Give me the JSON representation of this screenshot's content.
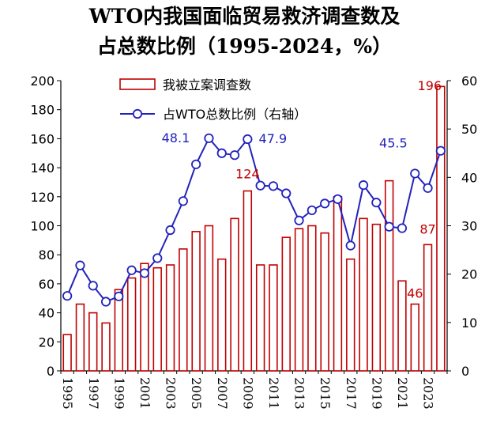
{
  "chart_data": {
    "type": "bar",
    "title": [
      "WTO内我国面临贸易救济调查数及",
      "占总数比例（1995-2024，%）"
    ],
    "x": [
      1995,
      1996,
      1997,
      1998,
      1999,
      2000,
      2001,
      2002,
      2003,
      2004,
      2005,
      2006,
      2007,
      2008,
      2009,
      2010,
      2011,
      2012,
      2013,
      2014,
      2015,
      2016,
      2017,
      2018,
      2019,
      2020,
      2021,
      2022,
      2023,
      2024
    ],
    "x_tick_labels": [
      "1995",
      "1997",
      "1999",
      "2001",
      "2003",
      "2005",
      "2007",
      "2009",
      "2011",
      "2013",
      "2015",
      "2017",
      "2019",
      "2021",
      "2023"
    ],
    "y_left": {
      "range": [
        0,
        200
      ],
      "ticks": [
        "0",
        "20",
        "40",
        "60",
        "80",
        "100",
        "120",
        "140",
        "160",
        "180",
        "200"
      ]
    },
    "y_right": {
      "range": [
        0,
        60
      ],
      "ticks": [
        "0",
        "10",
        "20",
        "30",
        "40",
        "50",
        "60"
      ]
    },
    "series": [
      {
        "name": "我被立案调查数",
        "type": "bar",
        "axis": "left",
        "color": "#c00000",
        "values": [
          25,
          46,
          40,
          33,
          56,
          64,
          74,
          71,
          73,
          84,
          96,
          100,
          77,
          105,
          124,
          73,
          73,
          92,
          98,
          100,
          95,
          120,
          77,
          105,
          101,
          131,
          62,
          46,
          87,
          196
        ]
      },
      {
        "name": "占WTO总数比例（右轴）",
        "type": "line",
        "axis": "right",
        "color": "#2222bb",
        "values": [
          15.5,
          21.8,
          17.6,
          14.3,
          15.4,
          20.8,
          20.2,
          23.3,
          29.1,
          35.1,
          42.7,
          48.1,
          45.0,
          44.6,
          47.9,
          38.3,
          38.2,
          36.7,
          31.1,
          33.2,
          34.6,
          35.5,
          25.9,
          38.4,
          34.8,
          29.8,
          29.5,
          40.8,
          37.8,
          45.5
        ]
      }
    ],
    "data_labels": [
      {
        "text": "48.1",
        "series": 1,
        "index": 11,
        "color": "#2222bb"
      },
      {
        "text": "47.9",
        "series": 1,
        "index": 14,
        "color": "#2222bb"
      },
      {
        "text": "124",
        "series": 0,
        "index": 14,
        "color": "#c00000"
      },
      {
        "text": "45.5",
        "series": 1,
        "index": 29,
        "color": "#2222bb"
      },
      {
        "text": "87",
        "series": 0,
        "index": 28,
        "color": "#c00000"
      },
      {
        "text": "46",
        "series": 0,
        "index": 27,
        "color": "#c00000"
      },
      {
        "text": "196",
        "series": 0,
        "index": 29,
        "color": "#c00000"
      }
    ],
    "legend": "top-center",
    "grid": false
  }
}
